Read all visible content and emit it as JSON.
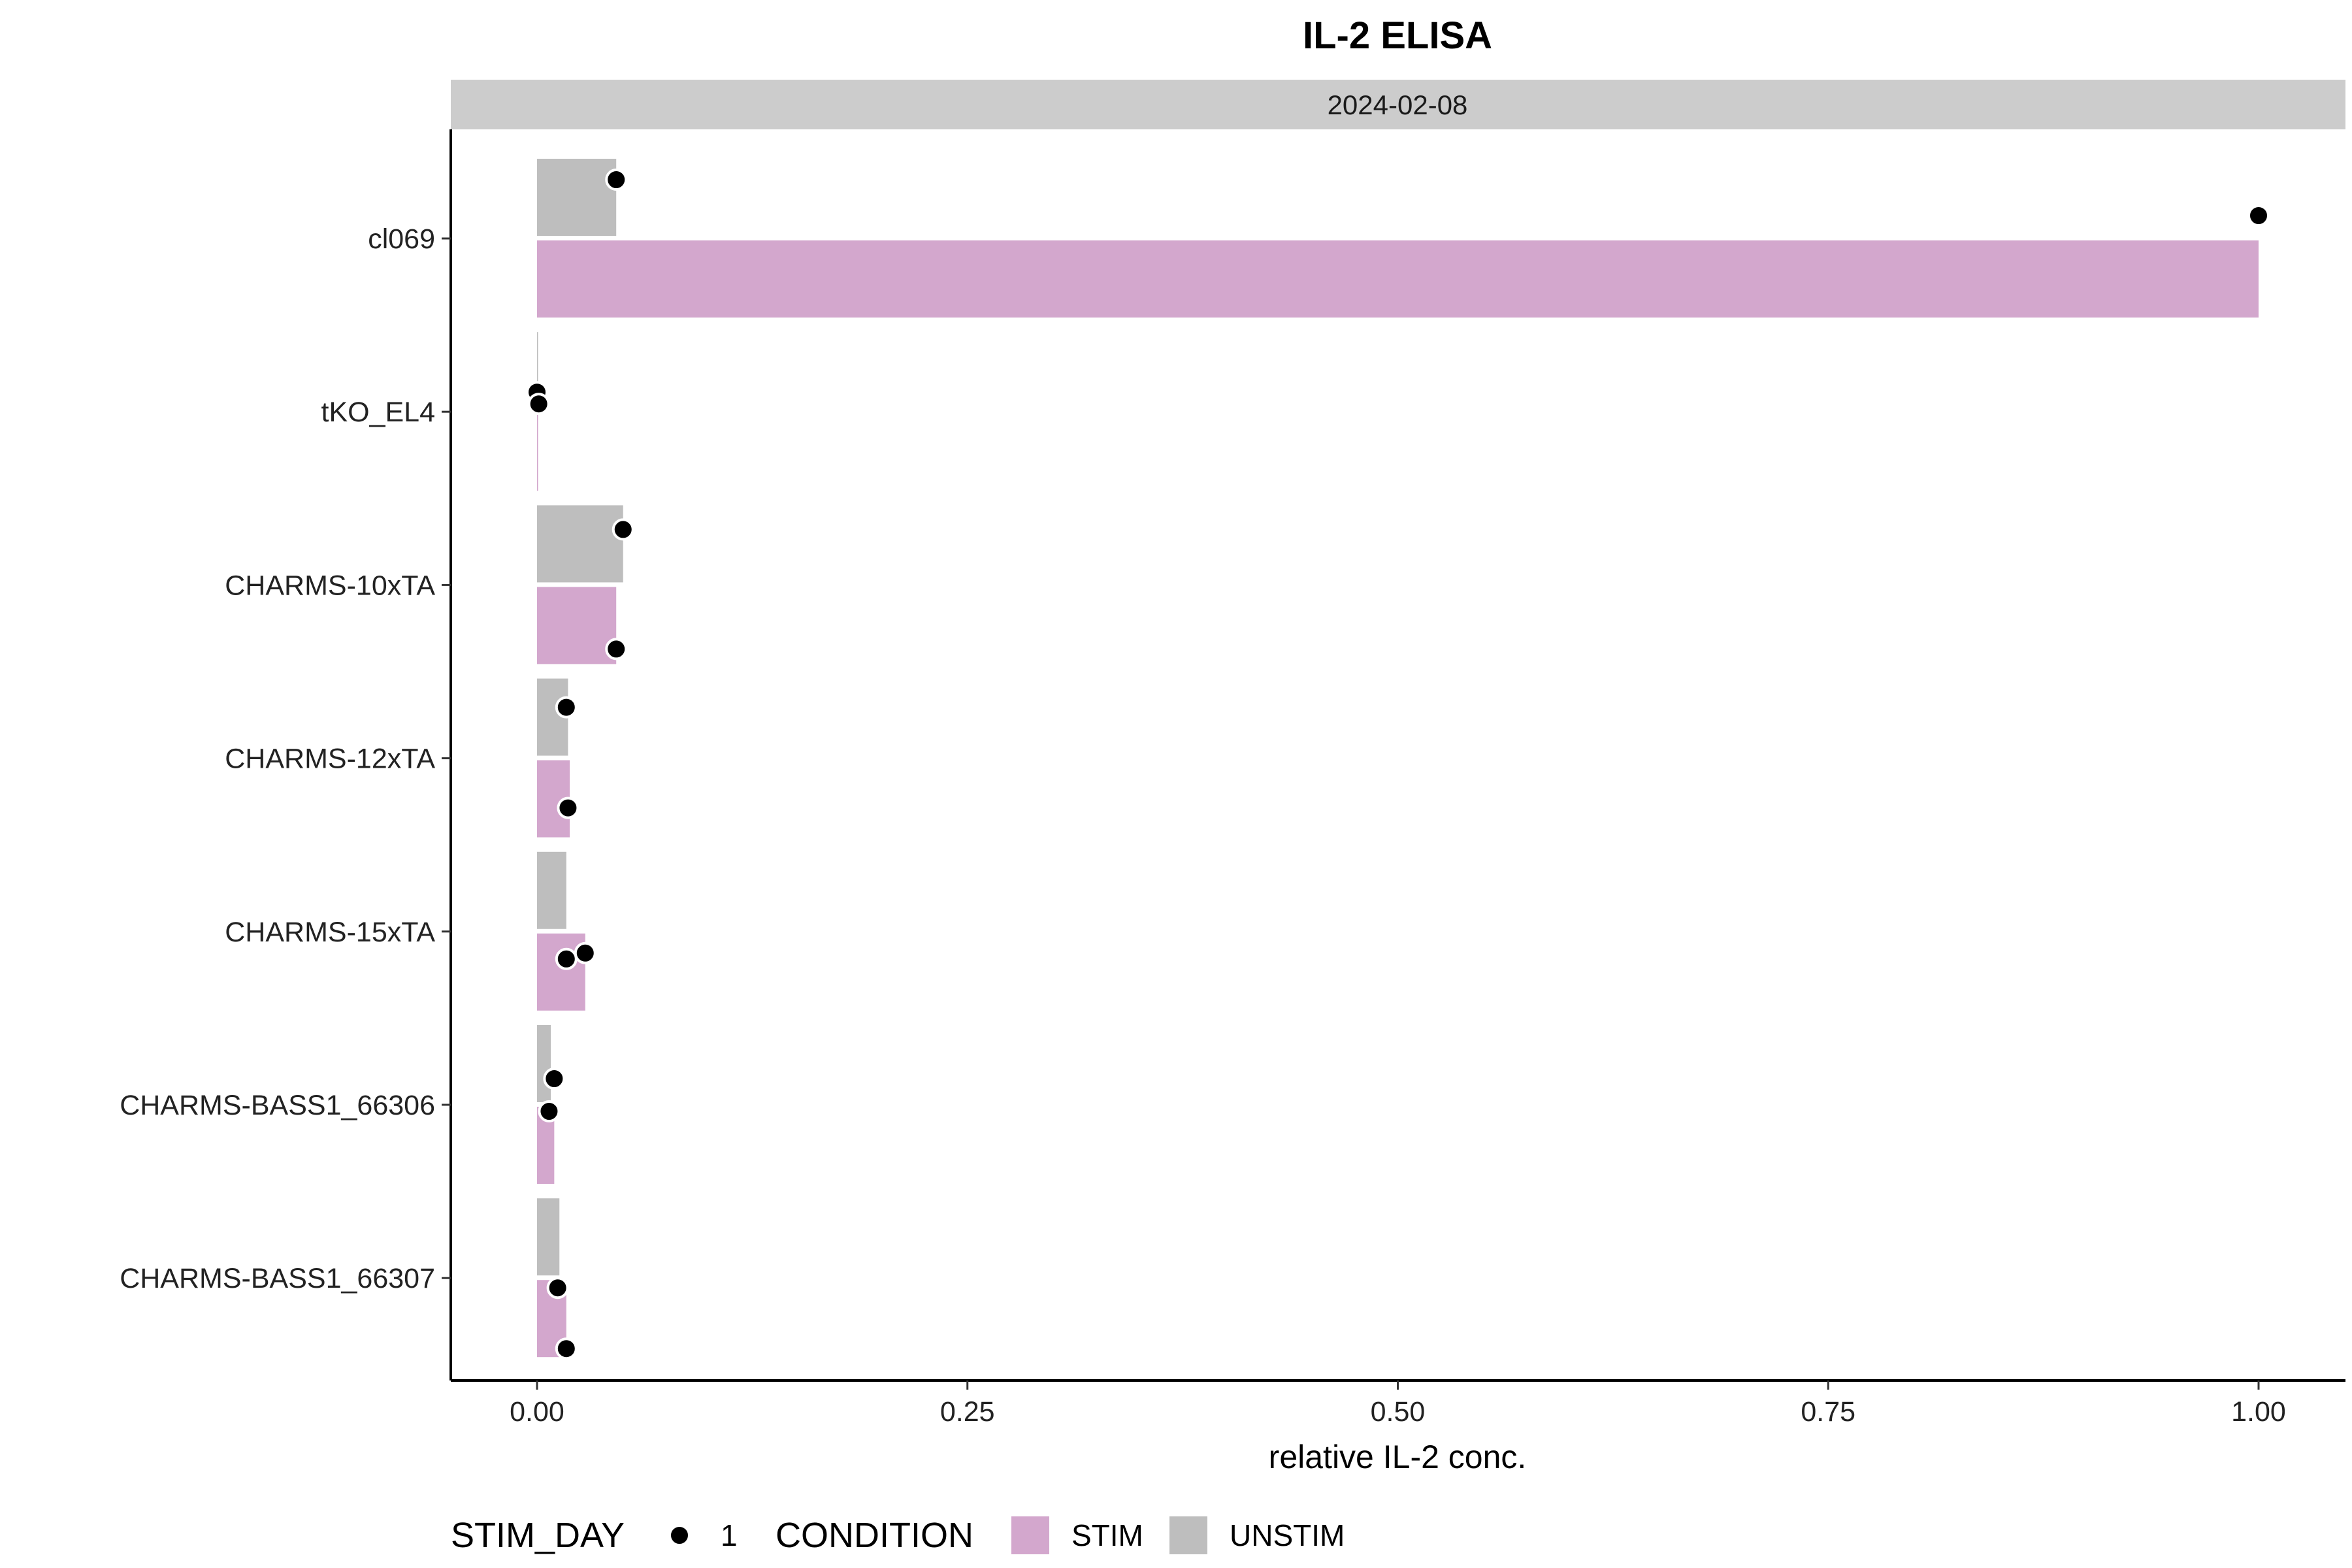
{
  "chart_data": {
    "type": "bar",
    "orientation": "horizontal",
    "title": "IL-2 ELISA",
    "facet": "2024-02-08",
    "xlabel": "relative IL-2 conc.",
    "ylabel": "",
    "xlim": [
      0,
      1
    ],
    "xticks": [
      "0.00",
      "0.25",
      "0.50",
      "0.75",
      "1.00"
    ],
    "categories": [
      "cl069",
      "tKO_EL4",
      "CHARMS-10xTA",
      "CHARMS-12xTA",
      "CHARMS-15xTA",
      "CHARMS-BASS1_66306",
      "CHARMS-BASS1_66307"
    ],
    "series": [
      {
        "name": "UNSTIM",
        "color": "#bebebe",
        "values": [
          0.046,
          0.0,
          0.05,
          0.018,
          0.017,
          0.008,
          0.013
        ]
      },
      {
        "name": "STIM",
        "color": "#d3a7cd",
        "values": [
          1.0,
          0.0,
          0.046,
          0.019,
          0.028,
          0.01,
          0.017
        ]
      }
    ],
    "points": [
      {
        "category": "cl069",
        "condition": "UNSTIM",
        "values": [
          0.046
        ]
      },
      {
        "category": "cl069",
        "condition": "STIM",
        "values": [
          1.0
        ]
      },
      {
        "category": "tKO_EL4",
        "condition": "UNSTIM",
        "values": [
          0.0
        ]
      },
      {
        "category": "tKO_EL4",
        "condition": "STIM",
        "values": [
          0.001
        ]
      },
      {
        "category": "CHARMS-10xTA",
        "condition": "UNSTIM",
        "values": [
          0.05
        ]
      },
      {
        "category": "CHARMS-10xTA",
        "condition": "STIM",
        "values": [
          0.046
        ]
      },
      {
        "category": "CHARMS-12xTA",
        "condition": "UNSTIM",
        "values": [
          0.017
        ]
      },
      {
        "category": "CHARMS-12xTA",
        "condition": "STIM",
        "values": [
          0.018
        ]
      },
      {
        "category": "CHARMS-15xTA",
        "condition": "STIM",
        "values": [
          0.017,
          0.028
        ]
      },
      {
        "category": "CHARMS-BASS1_66306",
        "condition": "UNSTIM",
        "values": [
          0.01
        ]
      },
      {
        "category": "CHARMS-BASS1_66306",
        "condition": "STIM",
        "values": [
          0.007
        ]
      },
      {
        "category": "CHARMS-BASS1_66307",
        "condition": "UNSTIM",
        "values": [
          0.012
        ]
      },
      {
        "category": "CHARMS-BASS1_66307",
        "condition": "STIM",
        "values": [
          0.017
        ]
      }
    ],
    "legend": {
      "position": "bottom",
      "stim_day_title": "STIM_DAY",
      "stim_day_label": "1",
      "condition_title": "CONDITION",
      "condition_items": [
        {
          "label": "STIM",
          "color": "#d3a7cd"
        },
        {
          "label": "UNSTIM",
          "color": "#bebebe"
        }
      ]
    },
    "grid": false,
    "strip_color": "#cccccc"
  }
}
